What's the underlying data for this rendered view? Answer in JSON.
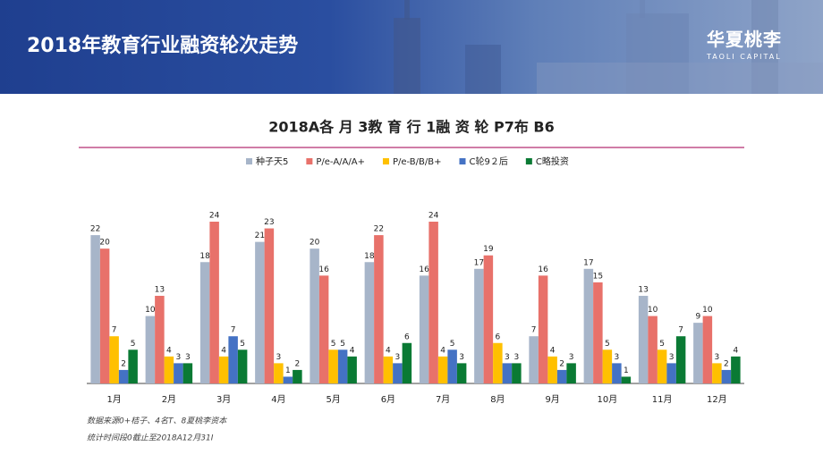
{
  "header": {
    "title": "2018年教育行业融资轮次走势",
    "logo": "华夏桃李",
    "logo_sub": "TAOLI CAPITAL"
  },
  "chart_data": {
    "type": "bar",
    "title": "2018A各 月 3教 育 行 1融 资 轮 P7布 B6",
    "categories": [
      "1月",
      "2月",
      "3月",
      "4月",
      "5月",
      "6月",
      "7月",
      "8月",
      "9月",
      "10月",
      "11月",
      "12月"
    ],
    "series": [
      {
        "name": "种子天5",
        "color": "#a7b5c9",
        "values": [
          22,
          10,
          18,
          21,
          20,
          18,
          16,
          17,
          7,
          17,
          13,
          9
        ]
      },
      {
        "name": "P/e-A/A/A+",
        "color": "#e8716a",
        "values": [
          20,
          13,
          24,
          23,
          16,
          22,
          24,
          19,
          16,
          15,
          10,
          10
        ]
      },
      {
        "name": "P/e-B/B/B+",
        "color": "#ffc000",
        "values": [
          7,
          4,
          4,
          3,
          5,
          4,
          4,
          6,
          4,
          5,
          5,
          3
        ]
      },
      {
        "name": "C轮9２后",
        "color": "#4472c4",
        "values": [
          2,
          3,
          7,
          1,
          5,
          3,
          5,
          3,
          2,
          3,
          3,
          2
        ]
      },
      {
        "name": "C略投资",
        "color": "#0a7a34",
        "values": [
          5,
          3,
          5,
          2,
          4,
          6,
          3,
          3,
          3,
          1,
          7,
          4
        ]
      }
    ],
    "notes": [
      "数据来源0+桔子、4名T、8夏桃李资本",
      "统计时间段0截止至2018A12月31I"
    ]
  }
}
